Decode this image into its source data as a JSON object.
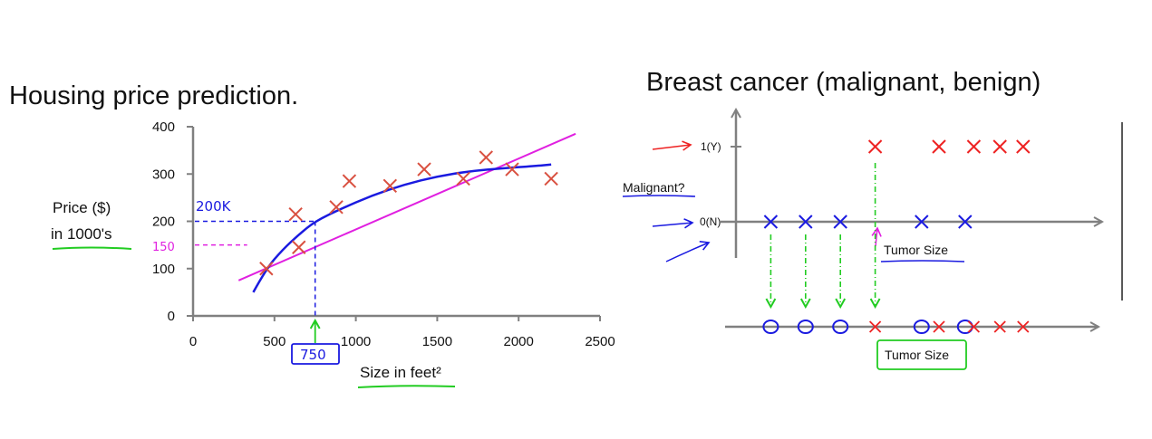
{
  "colors": {
    "axis": "#808080",
    "data_point": "#d95040",
    "ink_blue": "#1a1ae0",
    "ink_magenta": "#e020e0",
    "ink_green": "#22cc22",
    "ink_red": "#ee2222"
  },
  "chart_data": [
    {
      "type": "scatter",
      "title": "Housing price prediction.",
      "xlabel": "Size in feet²",
      "ylabel": "Price ($) in 1000's",
      "ylabel_lines": [
        "Price ($)",
        "in 1000's"
      ],
      "xlim": [
        0,
        2500
      ],
      "ylim": [
        0,
        400
      ],
      "xticks": [
        0,
        500,
        1000,
        1500,
        2000,
        2500
      ],
      "yticks": [
        0,
        100,
        200,
        300,
        400
      ],
      "grid": false,
      "series": [
        {
          "x": [
            450,
            650,
            630,
            880,
            960,
            1210,
            1420,
            1660,
            1800,
            1960,
            2200
          ],
          "y": [
            100,
            145,
            215,
            230,
            285,
            275,
            310,
            290,
            335,
            310,
            290
          ]
        }
      ],
      "fit_curves": [
        {
          "kind": "straight",
          "x": [
            280,
            2350
          ],
          "y": [
            75,
            385
          ]
        },
        {
          "kind": "quadratic",
          "x": [
            370,
            450,
            550,
            650,
            750,
            900,
            1100,
            1300,
            1500,
            1700,
            1900,
            2100,
            2200
          ],
          "y": [
            50,
            100,
            140,
            172,
            200,
            225,
            255,
            278,
            295,
            306,
            312,
            317,
            320
          ]
        }
      ],
      "annotations": {
        "query_x": 750,
        "query_x_label": "750",
        "pred_high": 200,
        "pred_high_label": "200K",
        "pred_low": 150,
        "pred_low_label": "150"
      }
    },
    {
      "type": "scatter",
      "title": "Breast cancer (malignant, benign)",
      "xlabel": "Tumor Size",
      "ylabel": "Malignant?",
      "yticks": [
        "1(Y)",
        "0(N)"
      ],
      "grid": false,
      "series": [
        {
          "x": [
            1.2,
            2.4,
            3.6
          ],
          "y": [
            0,
            0,
            0
          ]
        },
        {
          "x": [
            6.4,
            7.9
          ],
          "y": [
            0,
            0
          ]
        },
        {
          "x": [
            4.8,
            7.0,
            8.2,
            9.1,
            9.9
          ],
          "y": [
            1,
            1,
            1,
            1,
            1
          ]
        }
      ],
      "one_dimensional": {
        "xlabel": "Tumor Size",
        "benign_x": [
          1.2,
          2.4,
          3.6,
          6.4,
          7.9
        ],
        "malignant_x": [
          4.8,
          7.0,
          8.2,
          9.1,
          9.9
        ]
      }
    }
  ]
}
